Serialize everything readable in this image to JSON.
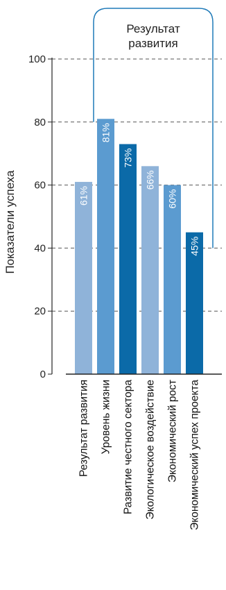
{
  "chart_data": {
    "type": "bar",
    "ylabel": "Показатели успеха",
    "ylim": [
      0,
      100
    ],
    "yticks": [
      0,
      20,
      40,
      60,
      80,
      100
    ],
    "grid": true,
    "categories": [
      "Результат развития",
      "Уровень жизни",
      "Развитие честного сектора",
      "Экологическое воздействие",
      "Экономический рост",
      "Экономический успех проекта"
    ],
    "values": [
      61,
      81,
      73,
      66,
      60,
      45
    ],
    "value_labels": [
      "61%",
      "81%",
      "73%",
      "66%",
      "60%",
      "45%"
    ],
    "bar_colors": [
      "#8fb3d9",
      "#5b9bd0",
      "#0b6aa8",
      "#8fb3d9",
      "#5b9bd0",
      "#0b6aa8"
    ],
    "annotation": {
      "line1": "Результат",
      "line2": "развития",
      "color": "#1f7ab8"
    }
  }
}
